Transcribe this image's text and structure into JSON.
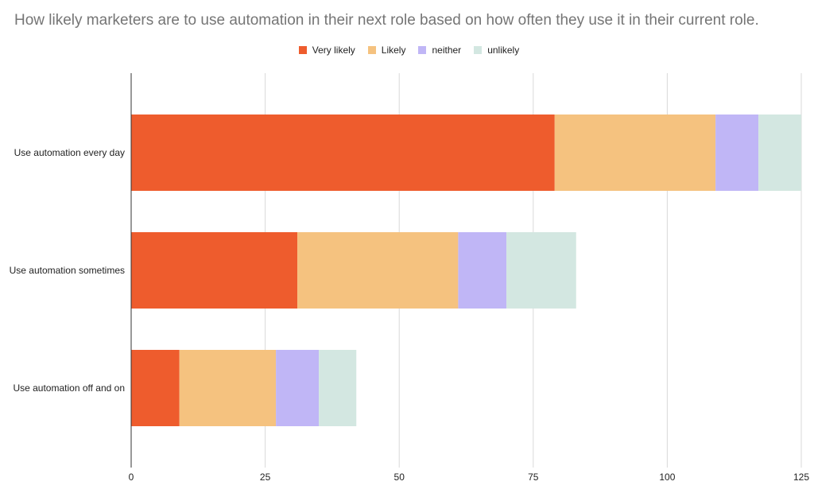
{
  "title": "How likely marketers are to use automation in their next role based on how often they use it in their current role.",
  "chart_data": {
    "type": "bar",
    "orientation": "horizontal",
    "stacked": true,
    "title": "How likely marketers are to use automation in their next role based on how often they use it in their current role.",
    "categories": [
      "Use automation every day",
      "Use automation sometimes",
      "Use automation off and on"
    ],
    "series": [
      {
        "name": "Very likely",
        "color": "#EE5C2D",
        "values": [
          79,
          31,
          9
        ]
      },
      {
        "name": "Likely",
        "color": "#F5C27F",
        "values": [
          30,
          30,
          18
        ]
      },
      {
        "name": "neither",
        "color": "#C0B6F6",
        "values": [
          8,
          9,
          8
        ]
      },
      {
        "name": "unlikely",
        "color": "#D3E7E1",
        "values": [
          8,
          13,
          7
        ]
      }
    ],
    "xlim": [
      0,
      125
    ],
    "xticks": [
      0,
      25,
      50,
      75,
      100,
      125
    ],
    "xlabel": "",
    "ylabel": "",
    "grid": true,
    "legend_position": "top-center"
  }
}
